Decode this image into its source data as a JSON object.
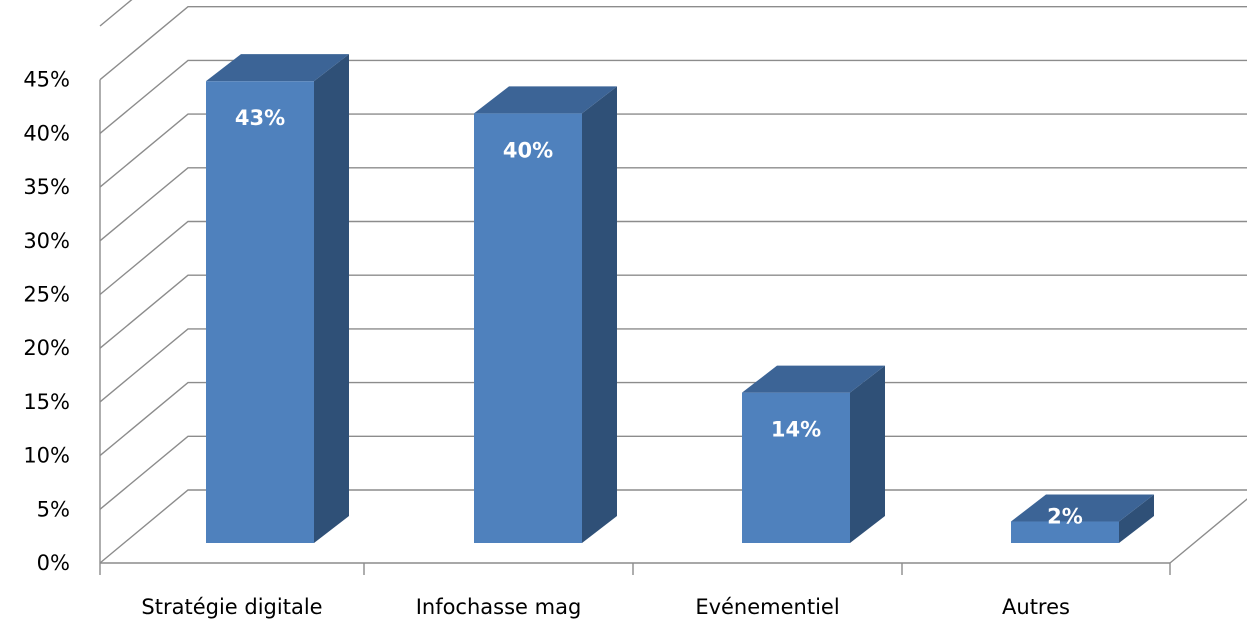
{
  "chart_data": {
    "type": "bar",
    "style": "3d-column",
    "categories": [
      "Stratégie digitale",
      "Infochasse mag",
      "Evénementiel",
      "Autres"
    ],
    "values": [
      43,
      40,
      14,
      2
    ],
    "data_labels": [
      "43%",
      "40%",
      "14%",
      "2%"
    ],
    "y_ticks": [
      "0%",
      "5%",
      "10%",
      "15%",
      "20%",
      "25%",
      "30%",
      "35%",
      "40%",
      "45%"
    ],
    "ylim": [
      0,
      45
    ],
    "y_unit": "%",
    "grid": true,
    "legend": "none",
    "title": "",
    "xlabel": "",
    "ylabel": ""
  },
  "colors": {
    "bar_front": "#4f81bd",
    "bar_side": "#2f5077",
    "bar_top": "#3c6496",
    "grid": "#8c8c8c",
    "label": "#ffffff"
  }
}
